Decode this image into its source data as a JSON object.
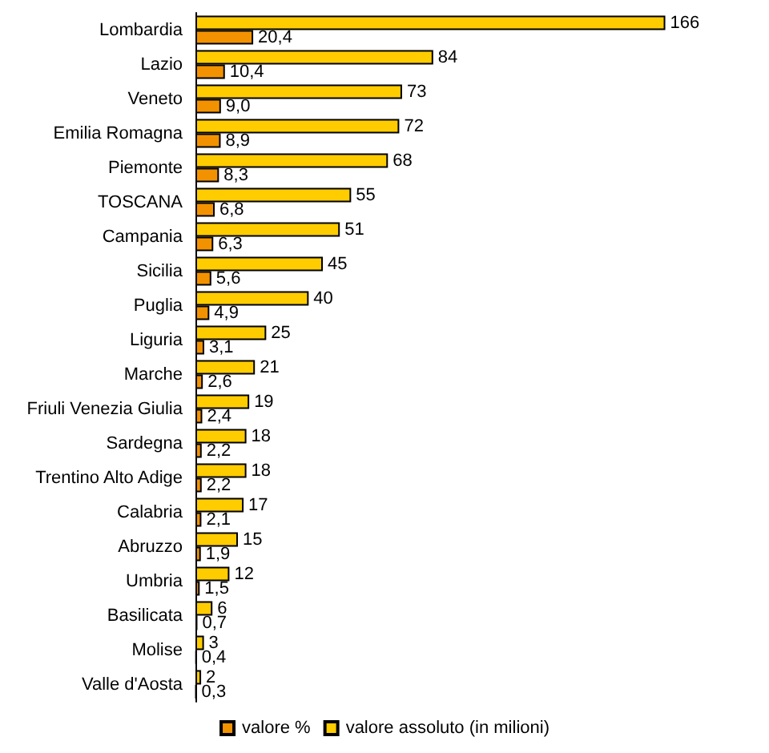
{
  "chart_data": {
    "type": "bar",
    "orientation": "horizontal",
    "legend": "bottom",
    "categories": [
      "Lombardia",
      "Lazio",
      "Veneto",
      "Emilia Romagna",
      "Piemonte",
      "TOSCANA",
      "Campania",
      "Sicilia",
      "Puglia",
      "Liguria",
      "Marche",
      "Friuli Venezia Giulia",
      "Sardegna",
      "Trentino Alto Adige",
      "Calabria",
      "Abruzzo",
      "Umbria",
      "Basilicata",
      "Molise",
      "Valle d'Aosta"
    ],
    "series": [
      {
        "name": "valore %",
        "color": "#f39200",
        "values": [
          20.4,
          10.4,
          9.0,
          8.9,
          8.3,
          6.8,
          6.3,
          5.6,
          4.9,
          3.1,
          2.6,
          2.4,
          2.2,
          2.2,
          2.1,
          1.9,
          1.5,
          0.7,
          0.4,
          0.3
        ],
        "value_labels": [
          "20,4",
          "10,4",
          "9,0",
          "8,9",
          "8,3",
          "6,8",
          "6,3",
          "5,6",
          "4,9",
          "3,1",
          "2,6",
          "2,4",
          "2,2",
          "2,2",
          "2,1",
          "1,9",
          "1,5",
          "0,7",
          "0,4",
          "0,3"
        ]
      },
      {
        "name": "valore assoluto (in milioni)",
        "color": "#ffcc00",
        "values": [
          166,
          84,
          73,
          72,
          68,
          55,
          51,
          45,
          40,
          25,
          21,
          19,
          18,
          18,
          17,
          15,
          12,
          6,
          3,
          2
        ],
        "value_labels": [
          "166",
          "84",
          "73",
          "72",
          "68",
          "55",
          "51",
          "45",
          "40",
          "25",
          "21",
          "19",
          "18",
          "18",
          "17",
          "15",
          "12",
          "6",
          "3",
          "2"
        ]
      }
    ]
  }
}
